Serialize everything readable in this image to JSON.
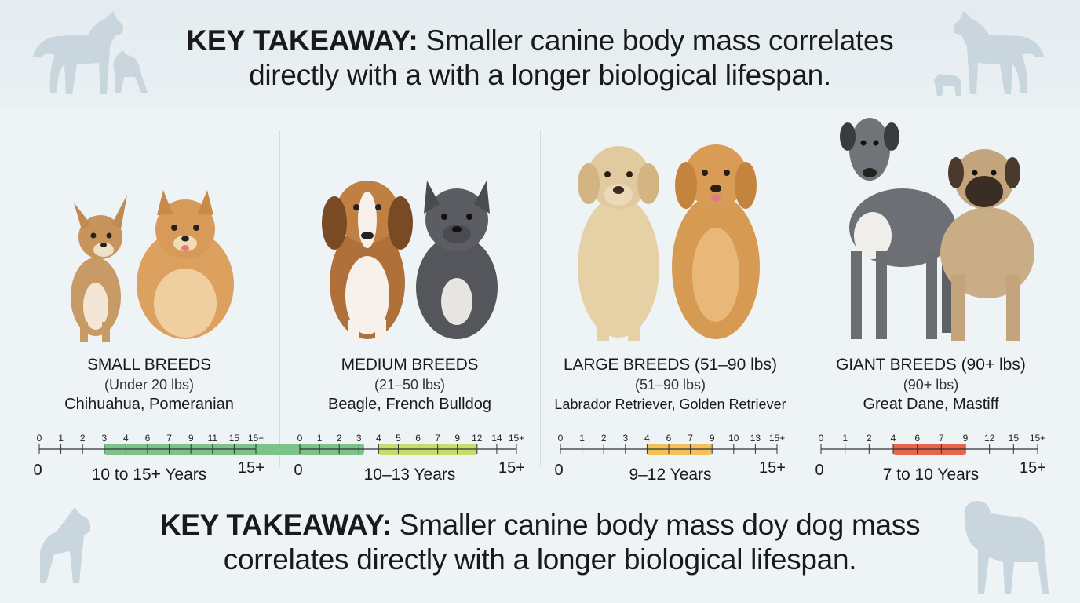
{
  "headline_top": {
    "lead": "KEY TAKEAWAY:",
    "rest": " Smaller canine body mass correlates",
    "line2": "directly with a with a longer biological lifespan."
  },
  "headline_bottom": {
    "lead": "KEY TAKEAWAY:",
    "rest": " Smaller canine body mass doy dog mass",
    "line2": "correlates directly with a longer biological lifespan."
  },
  "scale_ends": {
    "start": "0",
    "end": "15+"
  },
  "categories": [
    {
      "name": "SMALL BREEDS",
      "weight_inline": "",
      "weight": "(Under 20 lbs)",
      "breeds": "Chihuahua, Pomeranian",
      "ticks": [
        "0",
        "1",
        "2",
        "3",
        "4",
        "6",
        "7",
        "9",
        "11",
        "15",
        "15+"
      ],
      "range": [
        3,
        15
      ],
      "range_label": "10 to 15+ Years",
      "color": "#7cc38a",
      "dogs": [
        "chihuahua-icon",
        "pomeranian-icon"
      ]
    },
    {
      "name": "MEDIUM BREEDS",
      "weight_inline": "",
      "weight": "(21–50 lbs)",
      "breeds": "Beagle, French Bulldog",
      "ticks": [
        "0",
        "1",
        "2",
        "3",
        "4",
        "5",
        "6",
        "7",
        "9",
        "12",
        "14",
        "15+"
      ],
      "range": [
        4,
        9
      ],
      "range_label": "10–13 Years",
      "color": "#c7dc6a",
      "dogs": [
        "beagle-icon",
        "french-bulldog-icon"
      ]
    },
    {
      "name": "LARGE BREEDS",
      "weight_inline": " (51–90 lbs)",
      "weight": "(51–90 lbs)",
      "breeds": "Labrador Retriever, Golden Retriever",
      "ticks": [
        "0",
        "1",
        "2",
        "3",
        "4",
        "6",
        "7",
        "9",
        "10",
        "13",
        "15+"
      ],
      "range": [
        4,
        7
      ],
      "range_label": "9–12 Years",
      "color": "#f3c05a",
      "dogs": [
        "labrador-icon",
        "golden-retriever-icon"
      ]
    },
    {
      "name": "GIANT BREEDS",
      "weight_inline": " (90+ lbs)",
      "weight": "(90+ lbs)",
      "breeds": "Great Dane, Mastiff",
      "ticks": [
        "0",
        "1",
        "2",
        "4",
        "6",
        "7",
        "9",
        "12",
        "15",
        "15+"
      ],
      "range": [
        3,
        6
      ],
      "range_label": "7 to 10 Years",
      "color": "#e8654d",
      "dogs": [
        "great-dane-icon",
        "mastiff-icon"
      ]
    }
  ]
}
